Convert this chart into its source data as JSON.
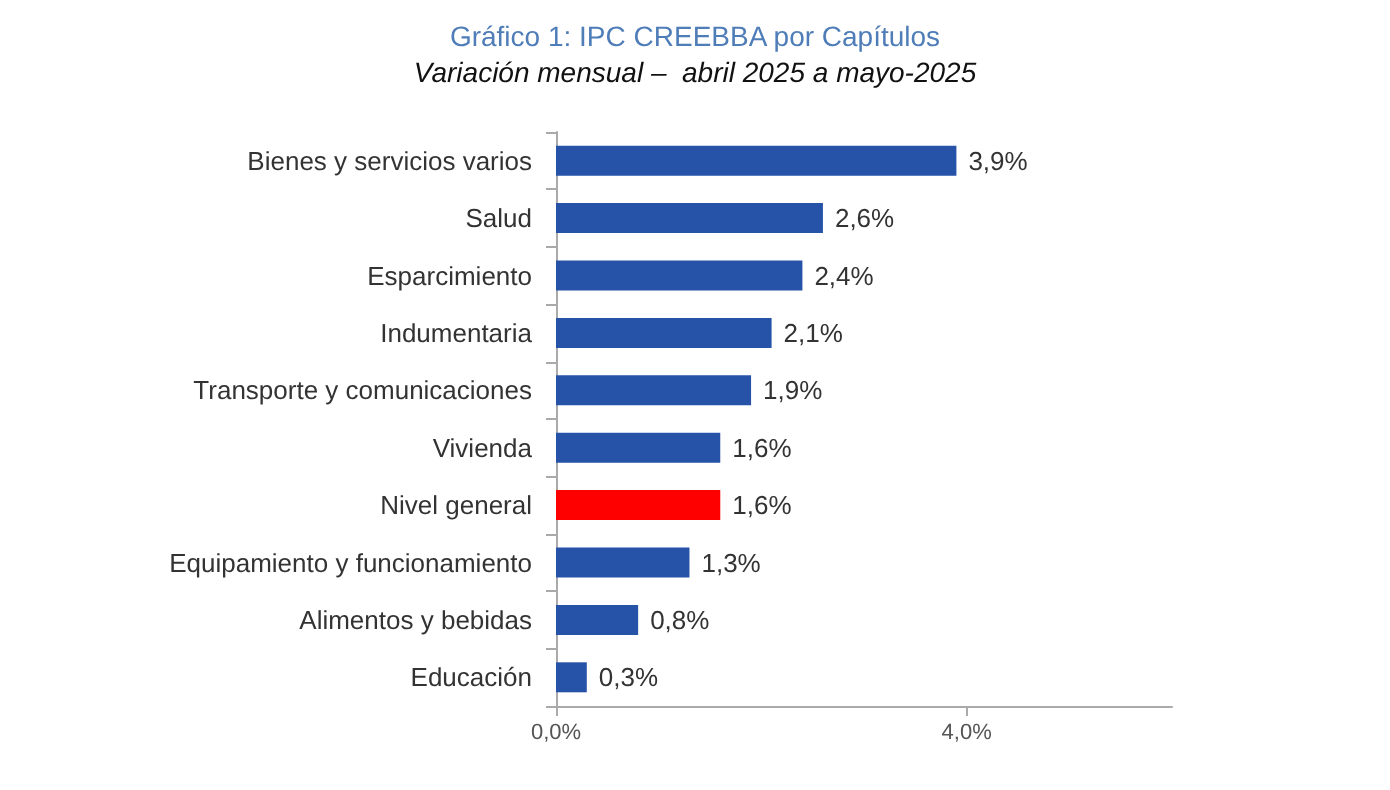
{
  "chart_data": {
    "type": "bar",
    "orientation": "horizontal",
    "title": "Gráfico 1: IPC CREEBBA por Capítulos",
    "subtitle": "Variación mensual –  abril 2025 a mayo-2025",
    "categories": [
      "Bienes y servicios varios",
      "Salud",
      "Esparcimiento",
      "Indumentaria",
      "Transporte y comunicaciones",
      "Vivienda",
      "Nivel general",
      "Equipamiento y funcionamiento",
      "Alimentos y bebidas",
      "Educación"
    ],
    "values": [
      3.9,
      2.6,
      2.4,
      2.1,
      1.9,
      1.6,
      1.6,
      1.3,
      0.8,
      0.3
    ],
    "colors": [
      "#2653a8",
      "#2653a8",
      "#2653a8",
      "#2653a8",
      "#2653a8",
      "#2653a8",
      "#ff0000",
      "#2653a8",
      "#2653a8",
      "#2653a8"
    ],
    "value_labels": [
      "3,9%",
      "2,6%",
      "2,4%",
      "2,1%",
      "1,9%",
      "1,6%",
      "1,6%",
      "1,3%",
      "0,8%",
      "0,3%"
    ],
    "xlim": [
      0,
      6
    ],
    "xticks": [
      {
        "value": 0,
        "label": "0,0%"
      },
      {
        "value": 4,
        "label": "4,0%"
      }
    ]
  }
}
